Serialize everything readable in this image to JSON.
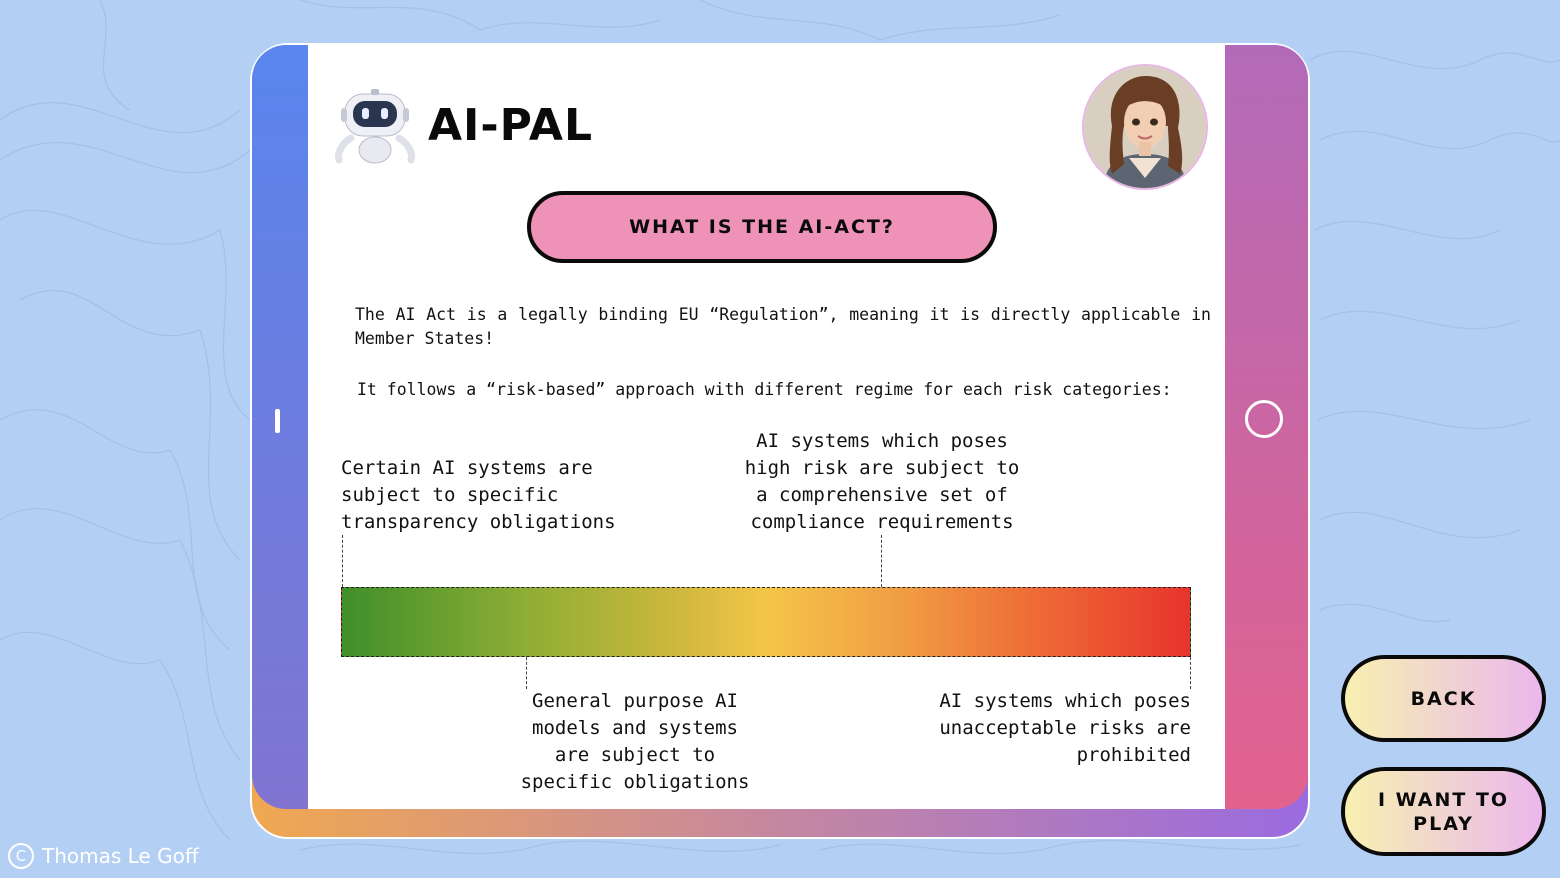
{
  "app": {
    "title": "AI-PAL"
  },
  "header": {
    "button_label": "WHAT IS THE AI-ACT?"
  },
  "intro": {
    "paragraph1": "The AI Act is a legally binding EU “Regulation”, meaning it is directly applicable in Member States!",
    "paragraph2": "It follows a “risk-based” approach with different regime for each risk categories:"
  },
  "risk_scale": {
    "categories": [
      "Certain AI systems are subject to specific transparency obligations",
      "AI systems which poses high risk are subject to a comprehensive set of compliance requirements",
      "General purpose AI models and systems are subject to specific obligations",
      "AI systems which poses unacceptable risks are prohibited"
    ],
    "colors": [
      "#3f8f2a",
      "#f4c648",
      "#e7342c"
    ]
  },
  "nav": {
    "back_label": "BACK",
    "play_label": "I WANT TO PLAY"
  },
  "footer": {
    "copyright_symbol": "C",
    "credit": "Thomas Le Goff"
  },
  "icons": [
    "robot-icon",
    "avatar-image",
    "copyright-icon"
  ]
}
